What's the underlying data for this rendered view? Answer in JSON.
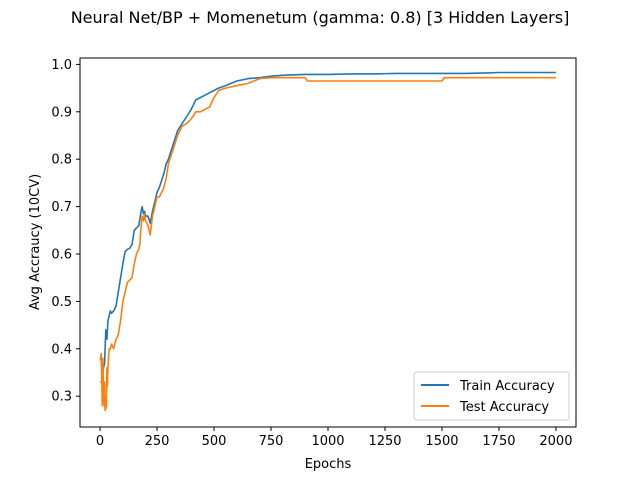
{
  "chart_data": {
    "type": "line",
    "title": "Neural Net/BP + Momenetum (gamma: 0.8) [3 Hidden Layers]",
    "xlabel": "Epochs",
    "ylabel": "Avg Accraucy (10CV)",
    "xlim": [
      -88,
      2088
    ],
    "ylim": [
      0.235,
      1.0135
    ],
    "xticks": [
      0,
      250,
      500,
      750,
      1000,
      1250,
      1500,
      1750,
      2000
    ],
    "xtick_labels": [
      "0",
      "250",
      "500",
      "750",
      "1000",
      "1250",
      "1500",
      "1750",
      "2000"
    ],
    "yticks": [
      0.3,
      0.4,
      0.5,
      0.6,
      0.7,
      0.8,
      0.9,
      1.0
    ],
    "ytick_labels": [
      "0.3",
      "0.4",
      "0.5",
      "0.6",
      "0.7",
      "0.8",
      "0.9",
      "1.0"
    ],
    "grid": false,
    "legend_position": "lower-right",
    "series": [
      {
        "name": "Train Accuracy",
        "color": "#1f77b4",
        "x": [
          1,
          8,
          15,
          20,
          25,
          30,
          35,
          40,
          45,
          50,
          60,
          70,
          80,
          90,
          100,
          110,
          120,
          130,
          140,
          150,
          160,
          170,
          180,
          185,
          190,
          195,
          200,
          210,
          220,
          230,
          240,
          250,
          260,
          270,
          280,
          290,
          300,
          320,
          340,
          360,
          380,
          400,
          420,
          440,
          460,
          480,
          500,
          520,
          550,
          600,
          650,
          700,
          750,
          800,
          850,
          900,
          950,
          1000,
          1100,
          1200,
          1300,
          1400,
          1500,
          1600,
          1700,
          1750,
          1800,
          1900,
          2000
        ],
        "y": [
          0.33,
          0.33,
          0.36,
          0.37,
          0.44,
          0.42,
          0.46,
          0.47,
          0.48,
          0.475,
          0.48,
          0.49,
          0.52,
          0.55,
          0.58,
          0.605,
          0.61,
          0.612,
          0.62,
          0.65,
          0.655,
          0.66,
          0.69,
          0.7,
          0.685,
          0.69,
          0.68,
          0.68,
          0.665,
          0.69,
          0.71,
          0.73,
          0.74,
          0.755,
          0.77,
          0.79,
          0.8,
          0.83,
          0.86,
          0.875,
          0.89,
          0.905,
          0.925,
          0.93,
          0.935,
          0.94,
          0.945,
          0.95,
          0.955,
          0.965,
          0.97,
          0.972,
          0.975,
          0.977,
          0.978,
          0.979,
          0.979,
          0.979,
          0.98,
          0.98,
          0.981,
          0.981,
          0.981,
          0.981,
          0.982,
          0.983,
          0.983,
          0.983,
          0.983
        ]
      },
      {
        "name": "Test Accuracy",
        "color": "#ff7f0e",
        "x": [
          1,
          5,
          10,
          12,
          15,
          18,
          20,
          22,
          25,
          28,
          30,
          32,
          35,
          38,
          40,
          45,
          50,
          60,
          70,
          80,
          90,
          100,
          110,
          120,
          130,
          140,
          150,
          160,
          170,
          175,
          180,
          185,
          190,
          195,
          200,
          210,
          220,
          230,
          240,
          250,
          260,
          270,
          280,
          290,
          300,
          320,
          340,
          360,
          380,
          400,
          420,
          440,
          460,
          480,
          500,
          520,
          550,
          600,
          650,
          700,
          750,
          800,
          850,
          900,
          910,
          1000,
          1100,
          1200,
          1300,
          1400,
          1500,
          1510,
          1600,
          1700,
          1800,
          1900,
          2000
        ],
        "y": [
          0.375,
          0.39,
          0.28,
          0.38,
          0.31,
          0.28,
          0.33,
          0.27,
          0.3,
          0.275,
          0.36,
          0.32,
          0.36,
          0.39,
          0.4,
          0.4,
          0.41,
          0.4,
          0.42,
          0.43,
          0.46,
          0.5,
          0.52,
          0.54,
          0.545,
          0.55,
          0.58,
          0.6,
          0.61,
          0.62,
          0.66,
          0.68,
          0.67,
          0.685,
          0.67,
          0.66,
          0.64,
          0.68,
          0.7,
          0.72,
          0.72,
          0.73,
          0.74,
          0.76,
          0.79,
          0.82,
          0.85,
          0.87,
          0.875,
          0.885,
          0.9,
          0.9,
          0.905,
          0.91,
          0.93,
          0.945,
          0.95,
          0.955,
          0.96,
          0.97,
          0.972,
          0.972,
          0.972,
          0.972,
          0.965,
          0.965,
          0.965,
          0.965,
          0.965,
          0.965,
          0.965,
          0.972,
          0.972,
          0.972,
          0.972,
          0.972,
          0.972
        ]
      }
    ]
  }
}
